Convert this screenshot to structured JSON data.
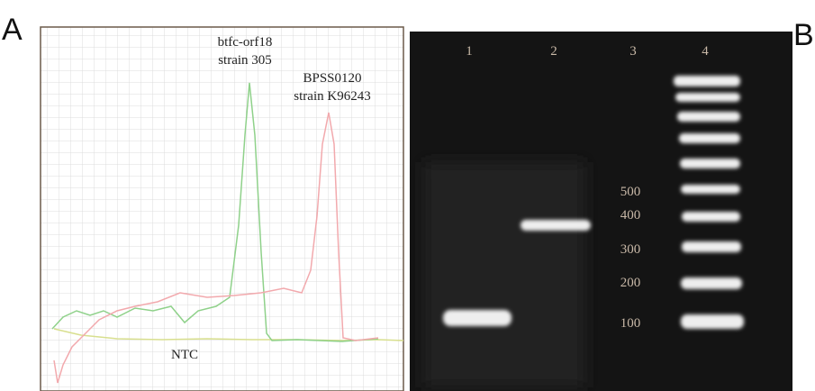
{
  "panel_a": {
    "label": "A",
    "annotations": [
      "btfc-orf18",
      "strain 305",
      "BPSS0120",
      "strain K96243",
      "NTC"
    ]
  },
  "panel_b": {
    "label": "B",
    "lanes": [
      "1",
      "2",
      "3",
      "4"
    ],
    "ladder": [
      "500",
      "400",
      "300",
      "200",
      "100"
    ]
  }
}
